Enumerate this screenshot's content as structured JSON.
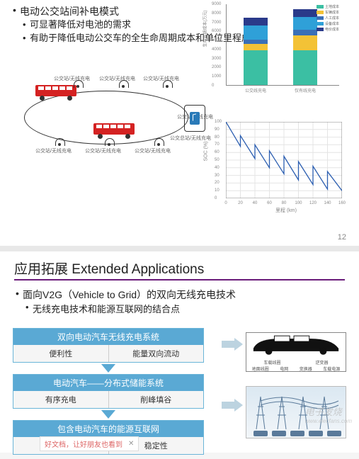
{
  "slide1": {
    "title": "电动公交站间补电模式",
    "bullets": [
      "可显著降低对电池的需求",
      "有助于降低电动公交车的全生命周期成本和单位里程成本"
    ],
    "bus_diagram": {
      "stop_label": "公交站/无线充电",
      "terminal_label": "公交总站/无线充电"
    },
    "barchart": {
      "ylabel": "生命周期成本(万元)",
      "yticks": [
        0,
        1000,
        2000,
        3000,
        4000,
        5000,
        6000,
        7000,
        8000,
        9000
      ],
      "categories": [
        "公交线充电",
        "仅有线充电"
      ],
      "legends": [
        "土地成本",
        "车辆成本",
        "人工成本",
        "设备成本",
        "电价成本"
      ],
      "legend_colors": [
        "#3bbfa3",
        "#f3c236",
        "#3a6fb7",
        "#2fa0d8",
        "#2a3a8a"
      ],
      "series": {
        "cat0": [
          3800,
          750,
          450,
          1600,
          800
        ],
        "cat1": [
          3800,
          1700,
          600,
          1400,
          900
        ]
      }
    },
    "linechart": {
      "ylabel": "SOC (%)",
      "xlabel": "里程 (km)",
      "yticks": [
        0,
        10,
        20,
        30,
        40,
        50,
        60,
        70,
        80,
        90,
        100
      ],
      "xticks": [
        0,
        20,
        40,
        60,
        80,
        100,
        120,
        140,
        160
      ],
      "color": "#2a5db0",
      "grid_color": "#e4e4e4",
      "points": [
        [
          0,
          100
        ],
        [
          20,
          68
        ],
        [
          20,
          82
        ],
        [
          40,
          52
        ],
        [
          40,
          70
        ],
        [
          60,
          40
        ],
        [
          60,
          62
        ],
        [
          80,
          32
        ],
        [
          80,
          55
        ],
        [
          100,
          24
        ],
        [
          100,
          48
        ],
        [
          120,
          18
        ],
        [
          120,
          42
        ],
        [
          140,
          12
        ],
        [
          140,
          35
        ],
        [
          160,
          10
        ]
      ]
    },
    "page_number": "12"
  },
  "slide2": {
    "header": "应用拓展 Extended Applications",
    "title": "面向V2G（Vehicle to Grid）的双向无线充电技术",
    "sub": "无线充电技术和能源互联网的结合点",
    "flow": [
      {
        "head": "双向电动汽车无线充电系统",
        "cells": [
          "便利性",
          "能量双向流动"
        ]
      },
      {
        "head": "电动汽车——分布式储能系统",
        "cells": [
          "有序充电",
          "削峰填谷"
        ]
      },
      {
        "head": "包含电动汽车的能源互联网",
        "cells": [
          "",
          "稳定性"
        ]
      }
    ],
    "car_labels_top": [
      "车载线圈",
      "逆变器"
    ],
    "car_labels_bottom": [
      "地面线圈",
      "电网",
      "变换器",
      "车载电源"
    ],
    "arrow_color": "#bcd3e0"
  },
  "watermark": "电子发烧",
  "watermark_sub": "www.elecfans.com",
  "bottom_tag": "好文档，让好朋友也看到",
  "close": "✕"
}
